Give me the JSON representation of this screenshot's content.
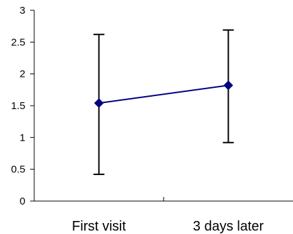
{
  "chart_data": {
    "type": "line",
    "categories": [
      "First visit",
      "3 days later"
    ],
    "series": [
      {
        "values": [
          1.54,
          1.82
        ],
        "error_low": [
          0.42,
          0.92
        ],
        "error_high": [
          2.62,
          2.69
        ],
        "color": "#00007f",
        "marker": "diamond"
      }
    ],
    "y_ticks": [
      "0",
      "0.5",
      "1",
      "1.5",
      "2",
      "2.5",
      "3"
    ],
    "ylim": [
      0,
      3
    ],
    "grid": false,
    "legend": "none",
    "error_bar_color": "#000000",
    "axis_color": "#000000"
  }
}
